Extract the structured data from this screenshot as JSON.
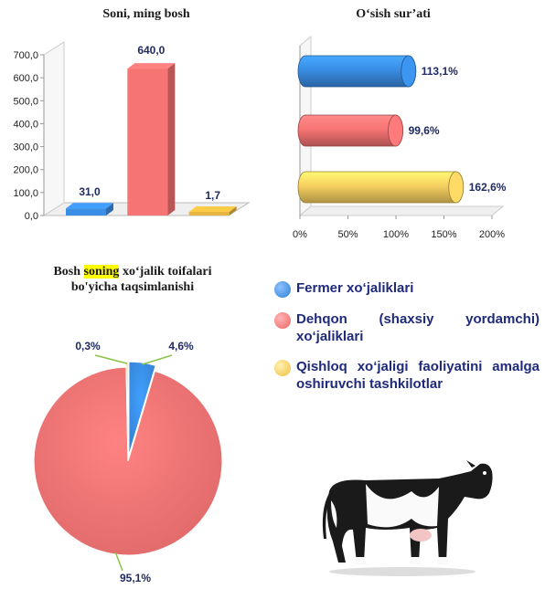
{
  "chart_data": [
    {
      "type": "bar",
      "title": "Soni, ming bosh",
      "categories": [
        "Fermer xo‘jaliklari",
        "Dehqon (shaxsiy yordamchi) xo‘jaliklari",
        "Qishloq xo‘jaligi faoliyatini amalga oshiruvchi tashkilotlar"
      ],
      "values": [
        31.0,
        640.0,
        1.7
      ],
      "value_labels": [
        "31,0",
        "640,0",
        "1,7"
      ],
      "ylim": [
        0,
        700
      ],
      "yticks": [
        "0,0",
        "100,0",
        "200,0",
        "300,0",
        "400,0",
        "500,0",
        "600,0",
        "700,0"
      ],
      "colors": [
        "#3a8ee6",
        "#f77474",
        "#e8b640"
      ]
    },
    {
      "type": "bar",
      "orientation": "horizontal",
      "title": "O‘sish sur’ati",
      "categories": [
        "Fermer xo‘jaliklari",
        "Dehqon (shaxsiy yordamchi) xo‘jaliklari",
        "Qishloq xo‘jaligi faoliyatini amalga oshiruvchi tashkilotlar"
      ],
      "values": [
        113.1,
        99.6,
        162.6
      ],
      "value_labels": [
        "113,1%",
        "99,6%",
        "162,6%"
      ],
      "xlim": [
        0,
        200
      ],
      "xticks": [
        "0%",
        "50%",
        "100%",
        "150%",
        "200%"
      ],
      "colors": [
        "#3a8ee6",
        "#f77474",
        "#f7d060"
      ]
    },
    {
      "type": "pie",
      "title_parts": [
        "Bosh ",
        "soning",
        " xo‘jalik toifalari bo'yicha taqsimlanishi"
      ],
      "categories": [
        "Fermer xo‘jaliklari",
        "Dehqon (shaxsiy yordamchi) xo‘jaliklari",
        "Qishloq xo‘jaligi faoliyatini amalga oshiruvchi tashkilotlar"
      ],
      "values": [
        4.6,
        95.1,
        0.3
      ],
      "value_labels": [
        "4,6%",
        "95,1%",
        "0,3%"
      ],
      "colors": [
        "#3a8ee6",
        "#f77474",
        "#e8b640"
      ]
    }
  ],
  "legend": {
    "items": [
      {
        "label": "Fermer xo‘jaliklari",
        "color": "#3a8ee6"
      },
      {
        "label": "Dehqon (shaxsiy yordamchi) xo‘jaliklari",
        "color": "#f77474"
      },
      {
        "label": "Qishloq xo‘jaligi faoliyatini amalga oshiruvchi tashkilotlar",
        "color": "#f7d060"
      }
    ]
  }
}
